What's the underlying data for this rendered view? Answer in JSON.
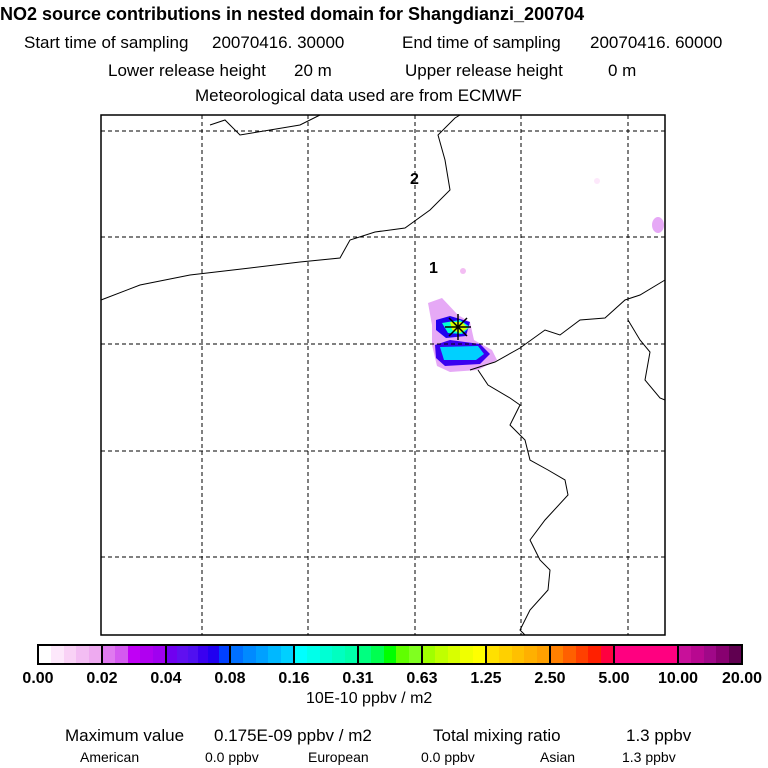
{
  "header": {
    "title": "NO2 source contributions in nested domain for Shangdianzi_200704",
    "start_label": "Start time of sampling",
    "start_value": "20070416. 30000",
    "end_label": "End time of sampling",
    "end_value": "20070416. 60000",
    "lower_label": "Lower release height",
    "lower_value": "20 m",
    "upper_label": "Upper release height",
    "upper_value": "0 m",
    "met": "Meteorological data used are from ECMWF"
  },
  "map": {
    "labels": [
      "2",
      "1"
    ],
    "station_marker": "asterisk-star-icon"
  },
  "colorbar": {
    "ticks": [
      "0.00",
      "0.02",
      "0.04",
      "0.08",
      "0.16",
      "0.31",
      "0.63",
      "1.25",
      "2.50",
      "5.00",
      "10.00",
      "20.00"
    ],
    "unit": "10E-10 ppbv / m2",
    "segments": [
      [
        "#ffffff",
        "#fde8fb",
        "#f9d2f6",
        "#f3bdf3",
        "#eeaaf0"
      ],
      [
        "#e07af0",
        "#d45af0",
        "#c000f5",
        "#b000f0",
        "#a000f0"
      ],
      [
        "#7000f0",
        "#6010f0",
        "#5010f0",
        "#3a00f0",
        "#2000f0",
        "#0040ff"
      ],
      [
        "#0070ff",
        "#008aff",
        "#00a0ff",
        "#00b8ff",
        "#00d0ff"
      ],
      [
        "#00ffff",
        "#00ffea",
        "#00ffd4",
        "#00ffc0",
        "#00ffaa"
      ],
      [
        "#00ff80",
        "#00ff50",
        "#00ff00",
        "#60ff00",
        "#80ff20"
      ],
      [
        "#a0ff00",
        "#c0ff00",
        "#d8ff00",
        "#f0ff00",
        "#ffff00"
      ],
      [
        "#ffe000",
        "#ffd000",
        "#ffc000",
        "#ffb000",
        "#ffa000"
      ],
      [
        "#ff8000",
        "#ff6000",
        "#ff4000",
        "#ff2000",
        "#ff0040"
      ],
      [
        "#ff0080",
        "#ff0080",
        "#ff0080",
        "#ff0080",
        "#ff0080"
      ],
      [
        "#c8109a",
        "#b80890",
        "#a00888",
        "#880070",
        "#600050"
      ]
    ]
  },
  "footer": {
    "max_label": "Maximum value",
    "max_value": "0.175E-09 ppbv / m2",
    "total_label": "Total mixing ratio",
    "total_value": "1.3 ppbv",
    "american_label": "American",
    "american_value": "0.0 ppbv",
    "european_label": "European",
    "european_value": "0.0 ppbv",
    "asian_label": "Asian",
    "asian_value": "1.3 ppbv"
  }
}
